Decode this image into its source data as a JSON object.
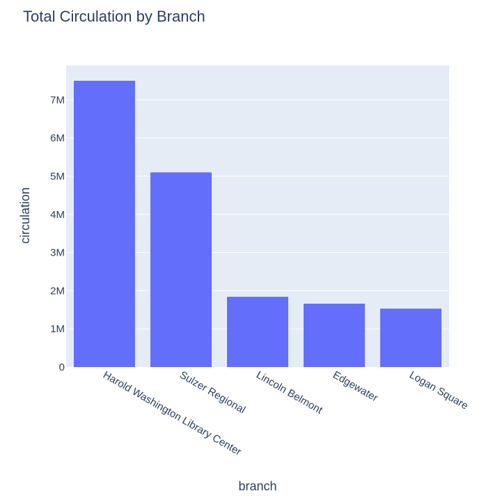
{
  "chart_data": {
    "type": "bar",
    "title": "Total Circulation by Branch",
    "xlabel": "branch",
    "ylabel": "circulation",
    "categories": [
      "Harold Washington Library Center",
      "Sulzer Regional",
      "Lincoln Belmont",
      "Edgewater",
      "Logan Square"
    ],
    "values": [
      7500000,
      5100000,
      1840000,
      1660000,
      1530000
    ],
    "ylim": [
      0,
      7900000
    ],
    "y_ticks": [
      {
        "value": 0,
        "label": "0"
      },
      {
        "value": 1000000,
        "label": "1M"
      },
      {
        "value": 2000000,
        "label": "2M"
      },
      {
        "value": 3000000,
        "label": "3M"
      },
      {
        "value": 4000000,
        "label": "4M"
      },
      {
        "value": 5000000,
        "label": "5M"
      },
      {
        "value": 6000000,
        "label": "6M"
      },
      {
        "value": 7000000,
        "label": "7M"
      }
    ],
    "grid": true,
    "legend": false,
    "colors": {
      "bar": "#636efa",
      "plot_background": "#e5ecf6",
      "gridline": "#ffffff",
      "text": "#2a3f5f"
    }
  }
}
